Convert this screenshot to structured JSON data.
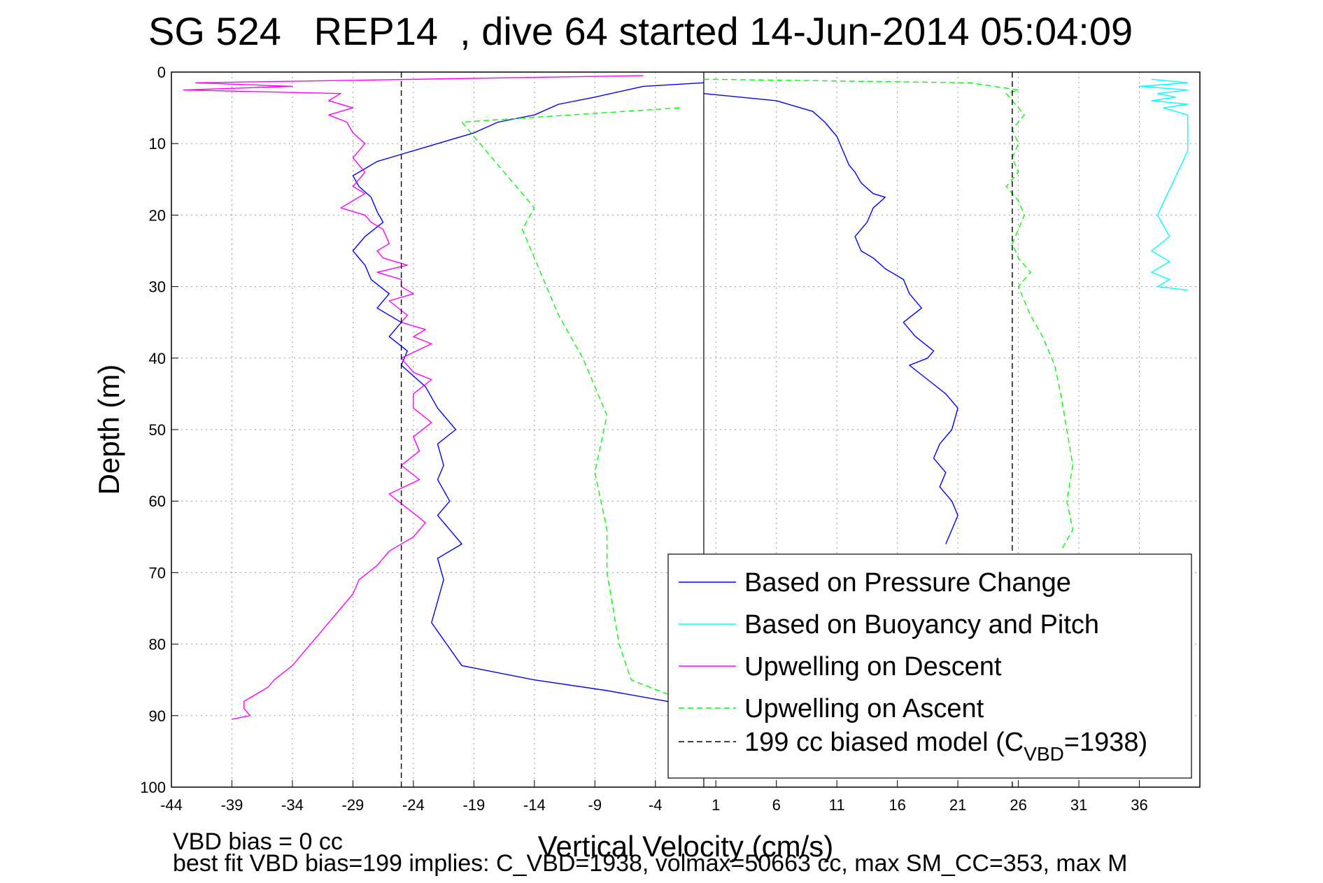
{
  "chart_data": {
    "type": "line",
    "title": "SG 524   REP14  , dive 64 started 14-Jun-2014 05:04:09",
    "xlabel": "Vertical Velocity (cm/s)",
    "ylabel": "Depth (m)",
    "xlim": [
      -44,
      41
    ],
    "ylim": [
      0,
      100
    ],
    "y_reversed": true,
    "grid": true,
    "xticks": [
      -44,
      -39,
      -34,
      -29,
      -24,
      -19,
      -14,
      -9,
      -4,
      1,
      6,
      11,
      16,
      21,
      26,
      31,
      36
    ],
    "yticks": [
      0,
      10,
      20,
      30,
      40,
      50,
      60,
      70,
      80,
      90,
      100
    ],
    "legend_position": "bottom-right",
    "zero_line_x": 0,
    "series": [
      {
        "name": "Based on Pressure Change",
        "color": "#0000ff",
        "style": "solid",
        "x": [
          0,
          -5,
          -9,
          -12,
          -14,
          -17,
          -19,
          -21,
          -23,
          -25,
          -27,
          -28,
          -29,
          -28.5,
          -27.5,
          -27,
          -26.5,
          -28,
          -29,
          -28,
          -27.5,
          -26,
          -27,
          -25,
          -26,
          -24.5,
          -25,
          -23,
          -22,
          -20.5,
          -22,
          -21.5,
          -22,
          -21,
          -22,
          -21,
          -20,
          -22,
          -21.5,
          -22,
          -22.5,
          -20,
          -14,
          -8,
          -3,
          -2
        ],
        "y": [
          1.5,
          2,
          3.5,
          4.5,
          6,
          7,
          8.5,
          9.5,
          10.5,
          11.5,
          12.5,
          13.5,
          14.5,
          16,
          17.5,
          19.5,
          21,
          23,
          25,
          27,
          29,
          31,
          33,
          35,
          37,
          39,
          41,
          44,
          47,
          50,
          52,
          55,
          57,
          60,
          62,
          64,
          66,
          68,
          71,
          74,
          77,
          83,
          85,
          86.5,
          88,
          90
        ]
      },
      {
        "name": "Based on Pressure Change",
        "color": "#0000ff",
        "style": "solid",
        "x": [
          0,
          6,
          9,
          10,
          11,
          11.5,
          12,
          12.5,
          13,
          14,
          15,
          14,
          13.5,
          12.5,
          13,
          14,
          15,
          16.5,
          17,
          18,
          16.5,
          17.5,
          19,
          18.5,
          17,
          18.5,
          20,
          21,
          20.5,
          19.5,
          19,
          20,
          19.5,
          20.5,
          21,
          20.5,
          20
        ],
        "y": [
          3,
          4,
          5.5,
          7,
          9,
          11,
          13,
          14,
          15.5,
          17,
          17.5,
          19,
          21,
          23,
          25,
          26,
          27.5,
          29,
          31,
          33,
          35,
          37,
          39,
          40,
          41,
          43,
          45,
          47,
          50,
          52,
          54,
          56,
          58,
          60,
          62,
          64,
          66
        ]
      },
      {
        "name": "Based on Buoyancy and Pitch",
        "color": "#00ffff",
        "style": "solid",
        "x": [
          37,
          40,
          36,
          40,
          37.5,
          39,
          37,
          40,
          38,
          40,
          40,
          40,
          37.5,
          38.5,
          37,
          38.5,
          37,
          38.5,
          37.5,
          40
        ],
        "y": [
          1,
          1.5,
          2,
          2.5,
          3,
          3.5,
          4,
          4.5,
          5,
          6,
          8,
          11,
          20,
          23,
          25,
          26.5,
          28,
          29,
          30,
          30.5
        ]
      },
      {
        "name": "Upwelling on Descent",
        "color": "#ff00ff",
        "style": "solid",
        "x": [
          -5,
          -42,
          -34,
          -43,
          -30,
          -31,
          -29,
          -31,
          -29.5,
          -29,
          -28,
          -29,
          -28,
          -29,
          -28,
          -29,
          -30,
          -28,
          -27.5,
          -26.5,
          -26,
          -27,
          -26.5,
          -24.5,
          -27,
          -25,
          -25,
          -24,
          -26,
          -24.5,
          -25,
          -23,
          -24,
          -22.5,
          -25,
          -24,
          -22.5,
          -24,
          -24,
          -22.5,
          -24,
          -23.5,
          -25,
          -23.5,
          -26,
          -24.5,
          -23,
          -24,
          -26,
          -27,
          -28.5,
          -29,
          -30,
          -31,
          -32,
          -33,
          -34,
          -35.5,
          -36,
          -37,
          -38,
          -38,
          -37.5,
          -39
        ],
        "y": [
          0.5,
          1.5,
          2,
          2.5,
          3,
          4,
          5,
          6,
          7,
          8.5,
          10,
          12,
          14,
          16,
          17,
          18,
          19,
          20,
          21,
          22,
          24,
          25,
          26,
          27,
          28,
          29,
          30,
          31,
          32,
          34,
          35,
          36,
          37,
          38,
          40,
          42,
          43,
          45,
          47,
          49,
          51,
          53,
          55,
          57,
          59,
          61,
          63,
          65,
          67,
          69,
          71,
          73,
          75,
          77,
          79,
          81,
          83,
          85,
          86,
          87,
          88,
          89,
          90,
          90.5
        ]
      },
      {
        "name": "Upwelling on Ascent",
        "color": "#00ff00",
        "style": "dashed",
        "x": [
          0,
          22,
          24,
          26,
          25,
          25.5,
          26,
          26.5,
          25.5,
          26,
          25.5,
          26,
          25,
          26,
          26.5,
          26,
          25.5,
          26,
          27,
          26,
          26.5,
          27,
          28,
          29,
          29.5,
          30,
          30.5,
          30,
          30.5,
          29.5
        ],
        "y": [
          1,
          1.5,
          2,
          2.5,
          3,
          4,
          5,
          6,
          8,
          10,
          12,
          14,
          16,
          18,
          20,
          22,
          24,
          26,
          28,
          30,
          32,
          34,
          37,
          41,
          45,
          50,
          55,
          60,
          64,
          67
        ]
      },
      {
        "name": "Upwelling on Ascent",
        "color": "#00ff00",
        "style": "dashed",
        "x": [
          -2,
          -20,
          -19,
          -18,
          -17,
          -16,
          -15,
          -14,
          -15,
          -14,
          -13,
          -12,
          -11,
          -10,
          -9,
          -8,
          -8.5,
          -9,
          -8.5,
          -8,
          -8,
          -7.5,
          -7,
          -6,
          -3
        ],
        "y": [
          5,
          7,
          9,
          11,
          13,
          15,
          17,
          19,
          22,
          26,
          30,
          34,
          37,
          40,
          44,
          48,
          52,
          56,
          60,
          64,
          70,
          75,
          80,
          85,
          87
        ]
      },
      {
        "name": "199 cc biased model (C_VBD=1938)",
        "color": "#000000",
        "style": "dashed",
        "x": [
          -25,
          -25
        ],
        "y": [
          0,
          100
        ]
      },
      {
        "name": "199 cc biased model (C_VBD=1938)",
        "color": "#000000",
        "style": "dashed",
        "x": [
          25.5,
          25.5
        ],
        "y": [
          0,
          100
        ]
      }
    ],
    "legend": [
      {
        "label": "Based on Pressure Change",
        "color": "#0000ff",
        "style": "solid"
      },
      {
        "label": "Based on Buoyancy and Pitch",
        "color": "#00ffff",
        "style": "solid"
      },
      {
        "label": "Upwelling on Descent",
        "color": "#ff00ff",
        "style": "solid"
      },
      {
        "label": "Upwelling on Ascent",
        "color": "#00ff00",
        "style": "dashed"
      },
      {
        "label_prefix": "199 cc biased model (C",
        "label_sub": "VBD",
        "label_suffix": "=1938)",
        "color": "#000000",
        "style": "dashed"
      }
    ]
  },
  "footer": {
    "line1": "VBD bias = 0 cc",
    "line2": "best fit VBD bias=199 implies: C_VBD=1938, volmax=50663 cc, max SM_CC=353, max M"
  }
}
